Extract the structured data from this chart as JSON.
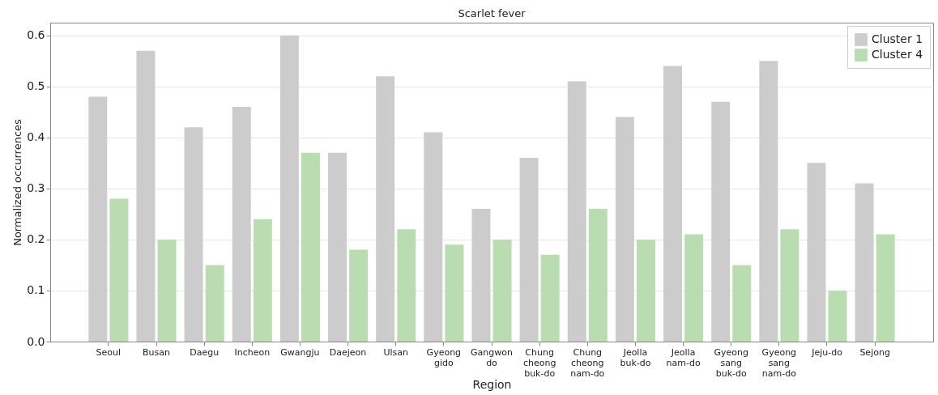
{
  "chart_data": {
    "type": "bar",
    "title": "Scarlet fever",
    "xlabel": "Region",
    "ylabel": "Normalized occurrences",
    "categories": [
      "Seoul",
      "Busan",
      "Daegu",
      "Incheon",
      "Gwangju",
      "Daejeon",
      "Ulsan",
      "Gyeong gido",
      "Gangwon do",
      "Chung cheong buk-do",
      "Chung cheong nam-do",
      "Jeolla buk-do",
      "Jeolla nam-do",
      "Gyeong sang buk-do",
      "Gyeong sang nam-do",
      "Jeju-do",
      "Sejong"
    ],
    "series": [
      {
        "name": "Cluster 1",
        "color": "#cccccc",
        "values": [
          0.48,
          0.57,
          0.42,
          0.46,
          0.6,
          0.37,
          0.52,
          0.41,
          0.26,
          0.36,
          0.51,
          0.44,
          0.54,
          0.47,
          0.55,
          0.35,
          0.31
        ]
      },
      {
        "name": "Cluster 4",
        "color": "#b9ddb0",
        "values": [
          0.28,
          0.2,
          0.15,
          0.24,
          0.37,
          0.18,
          0.22,
          0.19,
          0.2,
          0.17,
          0.26,
          0.2,
          0.21,
          0.15,
          0.22,
          0.1,
          0.21
        ]
      }
    ],
    "ylim": [
      0,
      0.625
    ],
    "yticks": [
      {
        "value": 0,
        "label": "0.0"
      },
      0.1,
      0.2,
      0.3,
      0.4,
      0.5,
      0.6
    ],
    "grid": "y",
    "legend": "top right"
  }
}
